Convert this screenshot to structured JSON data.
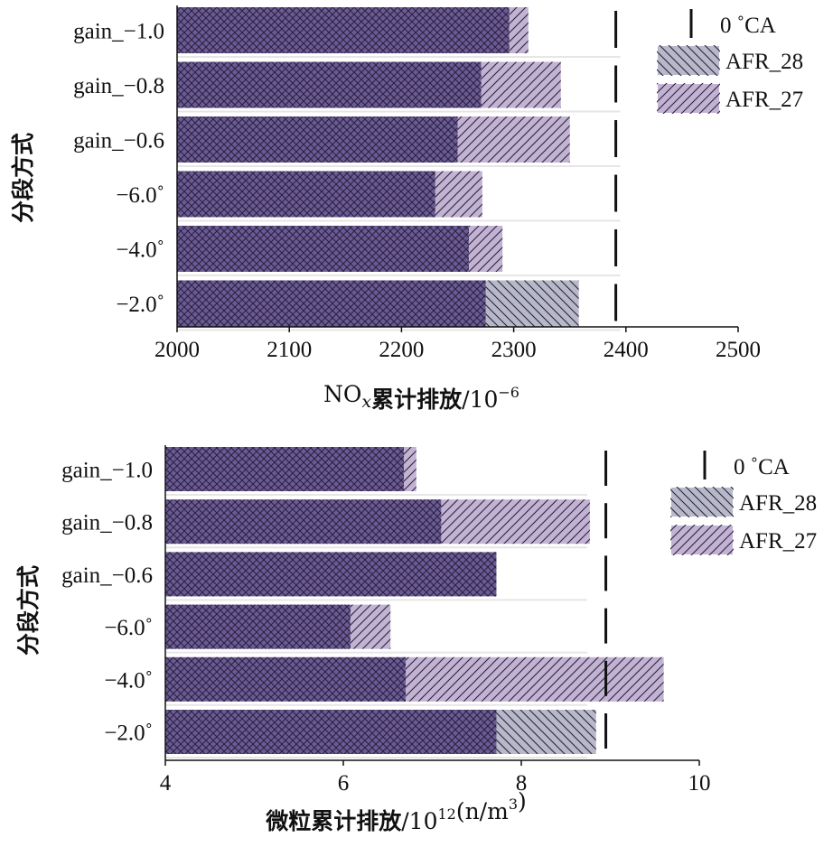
{
  "colors": {
    "base_bar": "#6b5b95",
    "afr27_fill": "#c2b3d2",
    "afr28_fill": "#b8b9c8",
    "hatch_dark": "#2b2140",
    "marker": "#111111"
  },
  "chart_data": [
    {
      "type": "bar",
      "orientation": "horizontal",
      "categories": [
        "gain_−1.0",
        "gain_−0.8",
        "gain_−0.6",
        "−6.0˚",
        "−4.0˚",
        "−2.0˚"
      ],
      "ylabel": "分段方式",
      "xlabel": {
        "pre": "NO",
        "sub": "x",
        "cjk": "累计排放",
        "post": "/10",
        "sup": "−6"
      },
      "xlim": [
        2000,
        2500
      ],
      "xticks": [
        "2000",
        "2100",
        "2200",
        "2300",
        "2400",
        "2500"
      ],
      "series": [
        {
          "name": "0 ˚CA",
          "values": [
            2391,
            2391,
            2391,
            2391,
            2391,
            2391
          ]
        },
        {
          "name": "AFR_28",
          "values": [
            null,
            null,
            null,
            null,
            null,
            2358
          ]
        },
        {
          "name": "AFR_27",
          "values": [
            2313,
            2342,
            2350,
            2272,
            2290,
            null
          ]
        }
      ],
      "base_values": [
        2296,
        2271,
        2250,
        2230,
        2260,
        2275
      ],
      "legend": [
        "0 ˚CA",
        "AFR_28",
        "AFR_27"
      ],
      "legend_position": "top-right"
    },
    {
      "type": "bar",
      "orientation": "horizontal",
      "categories": [
        "gain_−1.0",
        "gain_−0.8",
        "gain_−0.6",
        "−6.0˚",
        "−4.0˚",
        "−2.0˚"
      ],
      "ylabel": "分段方式",
      "xlabel": {
        "pre": "",
        "cjk": "微粒累计排放",
        "post": "/10",
        "sup": "12",
        "post2": "(n/m",
        "sup2": "3",
        "post3": ")"
      },
      "xlim": [
        4,
        10
      ],
      "xticks": [
        "4",
        "6",
        "8",
        "10"
      ],
      "series": [
        {
          "name": "0 ˚CA",
          "values": [
            8.95,
            8.95,
            8.95,
            8.95,
            8.95,
            8.95
          ]
        },
        {
          "name": "AFR_28",
          "values": [
            null,
            null,
            null,
            null,
            null,
            8.84
          ]
        },
        {
          "name": "AFR_27",
          "values": [
            6.82,
            8.77,
            null,
            6.53,
            9.6,
            null
          ]
        }
      ],
      "base_values": [
        6.68,
        7.1,
        7.72,
        6.08,
        6.7,
        7.72
      ],
      "legend": [
        "0 ˚CA",
        "AFR_28",
        "AFR_27"
      ],
      "legend_position": "top-right"
    }
  ]
}
